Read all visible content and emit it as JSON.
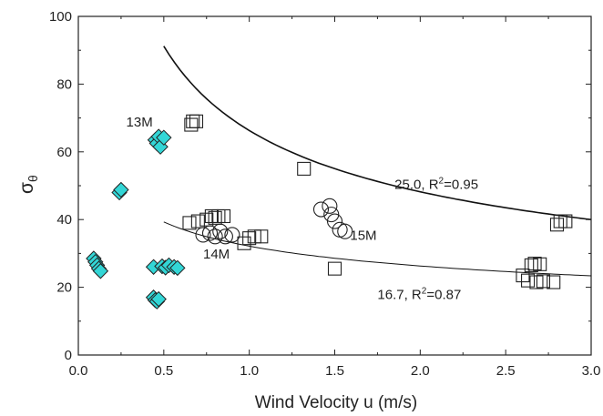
{
  "chart_data": {
    "type": "scatter",
    "xlabel": "Wind Velocity u (m/s)",
    "ylabel": "σ",
    "ylabel_sub": "θ",
    "xlim": [
      0.0,
      3.0
    ],
    "ylim": [
      0,
      100
    ],
    "xticks": [
      "0.0",
      "0.5",
      "1.0",
      "1.5",
      "2.0",
      "2.5",
      "3.0"
    ],
    "xtick_values": [
      0.0,
      0.5,
      1.0,
      1.5,
      2.0,
      2.5,
      3.0
    ],
    "yticks": [
      "0",
      "20",
      "40",
      "60",
      "80",
      "100"
    ],
    "ytick_values": [
      0,
      20,
      40,
      60,
      80,
      100
    ],
    "grid": false,
    "colors": {
      "diamond_fill": "#33d6d6",
      "marker_stroke": "#222222",
      "curve": "#111111"
    },
    "series": [
      {
        "marker": "diamond",
        "points": [
          [
            0.09,
            28.5
          ],
          [
            0.1,
            27.5
          ],
          [
            0.11,
            26.5
          ],
          [
            0.12,
            25.5
          ],
          [
            0.13,
            24.8
          ],
          [
            0.24,
            48.0
          ],
          [
            0.25,
            48.8
          ],
          [
            0.44,
            17.0
          ],
          [
            0.45,
            16.2
          ],
          [
            0.46,
            15.8
          ],
          [
            0.47,
            16.5
          ],
          [
            0.44,
            26.0
          ],
          [
            0.49,
            26.2
          ],
          [
            0.51,
            25.8
          ],
          [
            0.53,
            26.5
          ],
          [
            0.56,
            26.0
          ],
          [
            0.58,
            25.7
          ],
          [
            0.45,
            63.5
          ],
          [
            0.46,
            62.5
          ],
          [
            0.47,
            64.5
          ],
          [
            0.48,
            61.5
          ],
          [
            0.5,
            64.2
          ]
        ]
      },
      {
        "marker": "square",
        "points": [
          [
            0.66,
            68.0
          ],
          [
            0.67,
            69.0
          ],
          [
            0.69,
            69.0
          ],
          [
            1.32,
            55.0
          ],
          [
            1.5,
            25.5
          ],
          [
            0.65,
            39.0
          ],
          [
            0.7,
            39.5
          ],
          [
            0.75,
            40.0
          ],
          [
            0.78,
            41.0
          ],
          [
            0.8,
            40.5
          ],
          [
            0.82,
            41.0
          ],
          [
            0.85,
            41.0
          ],
          [
            0.97,
            33.0
          ],
          [
            1.0,
            34.5
          ],
          [
            1.03,
            35.0
          ],
          [
            1.07,
            35.0
          ],
          [
            2.6,
            23.5
          ],
          [
            2.63,
            22.0
          ],
          [
            2.65,
            26.5
          ],
          [
            2.67,
            27.0
          ],
          [
            2.7,
            26.8
          ],
          [
            2.68,
            21.5
          ],
          [
            2.72,
            21.8
          ],
          [
            2.78,
            21.5
          ],
          [
            2.8,
            38.5
          ],
          [
            2.82,
            39.5
          ],
          [
            2.85,
            39.5
          ]
        ]
      },
      {
        "marker": "circle",
        "points": [
          [
            0.73,
            35.5
          ],
          [
            0.77,
            36.0
          ],
          [
            0.8,
            35.0
          ],
          [
            0.83,
            36.5
          ],
          [
            0.86,
            35.0
          ],
          [
            0.9,
            35.5
          ],
          [
            1.42,
            43.0
          ],
          [
            1.47,
            44.0
          ],
          [
            1.48,
            41.5
          ],
          [
            1.5,
            39.5
          ],
          [
            1.53,
            37.0
          ],
          [
            1.56,
            36.5
          ]
        ]
      }
    ],
    "curves": [
      {
        "coef": 25.0,
        "exponent": -0.46,
        "x_start": 0.5,
        "x_end": 3.0,
        "stroke_width": 1.6
      },
      {
        "coef": 16.7,
        "exponent": -0.29,
        "x_start": 0.5,
        "x_end": 3.0,
        "stroke_width": 1.0
      }
    ],
    "annotations": [
      {
        "text": "13M",
        "x": 0.28,
        "y": 67.5
      },
      {
        "text": "14M",
        "x": 0.73,
        "y": 28.5
      },
      {
        "text": "15M",
        "x": 1.59,
        "y": 34.0
      },
      {
        "text": "25.0, R",
        "sup": "2",
        "tail": "=0.95",
        "x": 1.85,
        "y": 49.0
      },
      {
        "text": "16.7, R",
        "sup": "2",
        "tail": "=0.87",
        "x": 1.75,
        "y": 16.5
      }
    ]
  }
}
